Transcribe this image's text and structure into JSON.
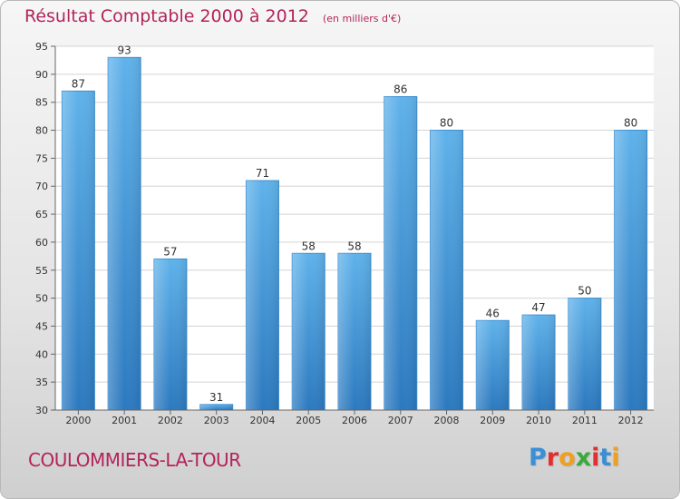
{
  "title": "Résultat Comptable 2000 à 2012",
  "subtitle": "(en milliers d'€)",
  "commune": "COULOMMIERS-LA-TOUR",
  "brand": {
    "letters": [
      "P",
      "r",
      "o",
      "x",
      "i",
      "t",
      "i"
    ],
    "colors": [
      "#3a8fd6",
      "#e0302f",
      "#f0a020",
      "#3aaa3a",
      "#e0302f",
      "#3a8fd6",
      "#f0a020"
    ]
  },
  "colors": {
    "title": "#b3245a",
    "bar_light": "#5aaee8",
    "bar_dark": "#2f7dc4"
  },
  "chart_data": {
    "type": "bar",
    "title": "Résultat Comptable 2000 à 2012",
    "categories": [
      "2000",
      "2001",
      "2002",
      "2003",
      "2004",
      "2005",
      "2006",
      "2007",
      "2008",
      "2009",
      "2010",
      "2011",
      "2012"
    ],
    "values": [
      87,
      93,
      57,
      31,
      71,
      58,
      58,
      86,
      80,
      46,
      47,
      50,
      80
    ],
    "ylim": [
      30,
      95
    ],
    "yticks": [
      30,
      35,
      40,
      45,
      50,
      55,
      60,
      65,
      70,
      75,
      80,
      85,
      90,
      95
    ],
    "grid": true,
    "xlabel": "",
    "ylabel": ""
  }
}
